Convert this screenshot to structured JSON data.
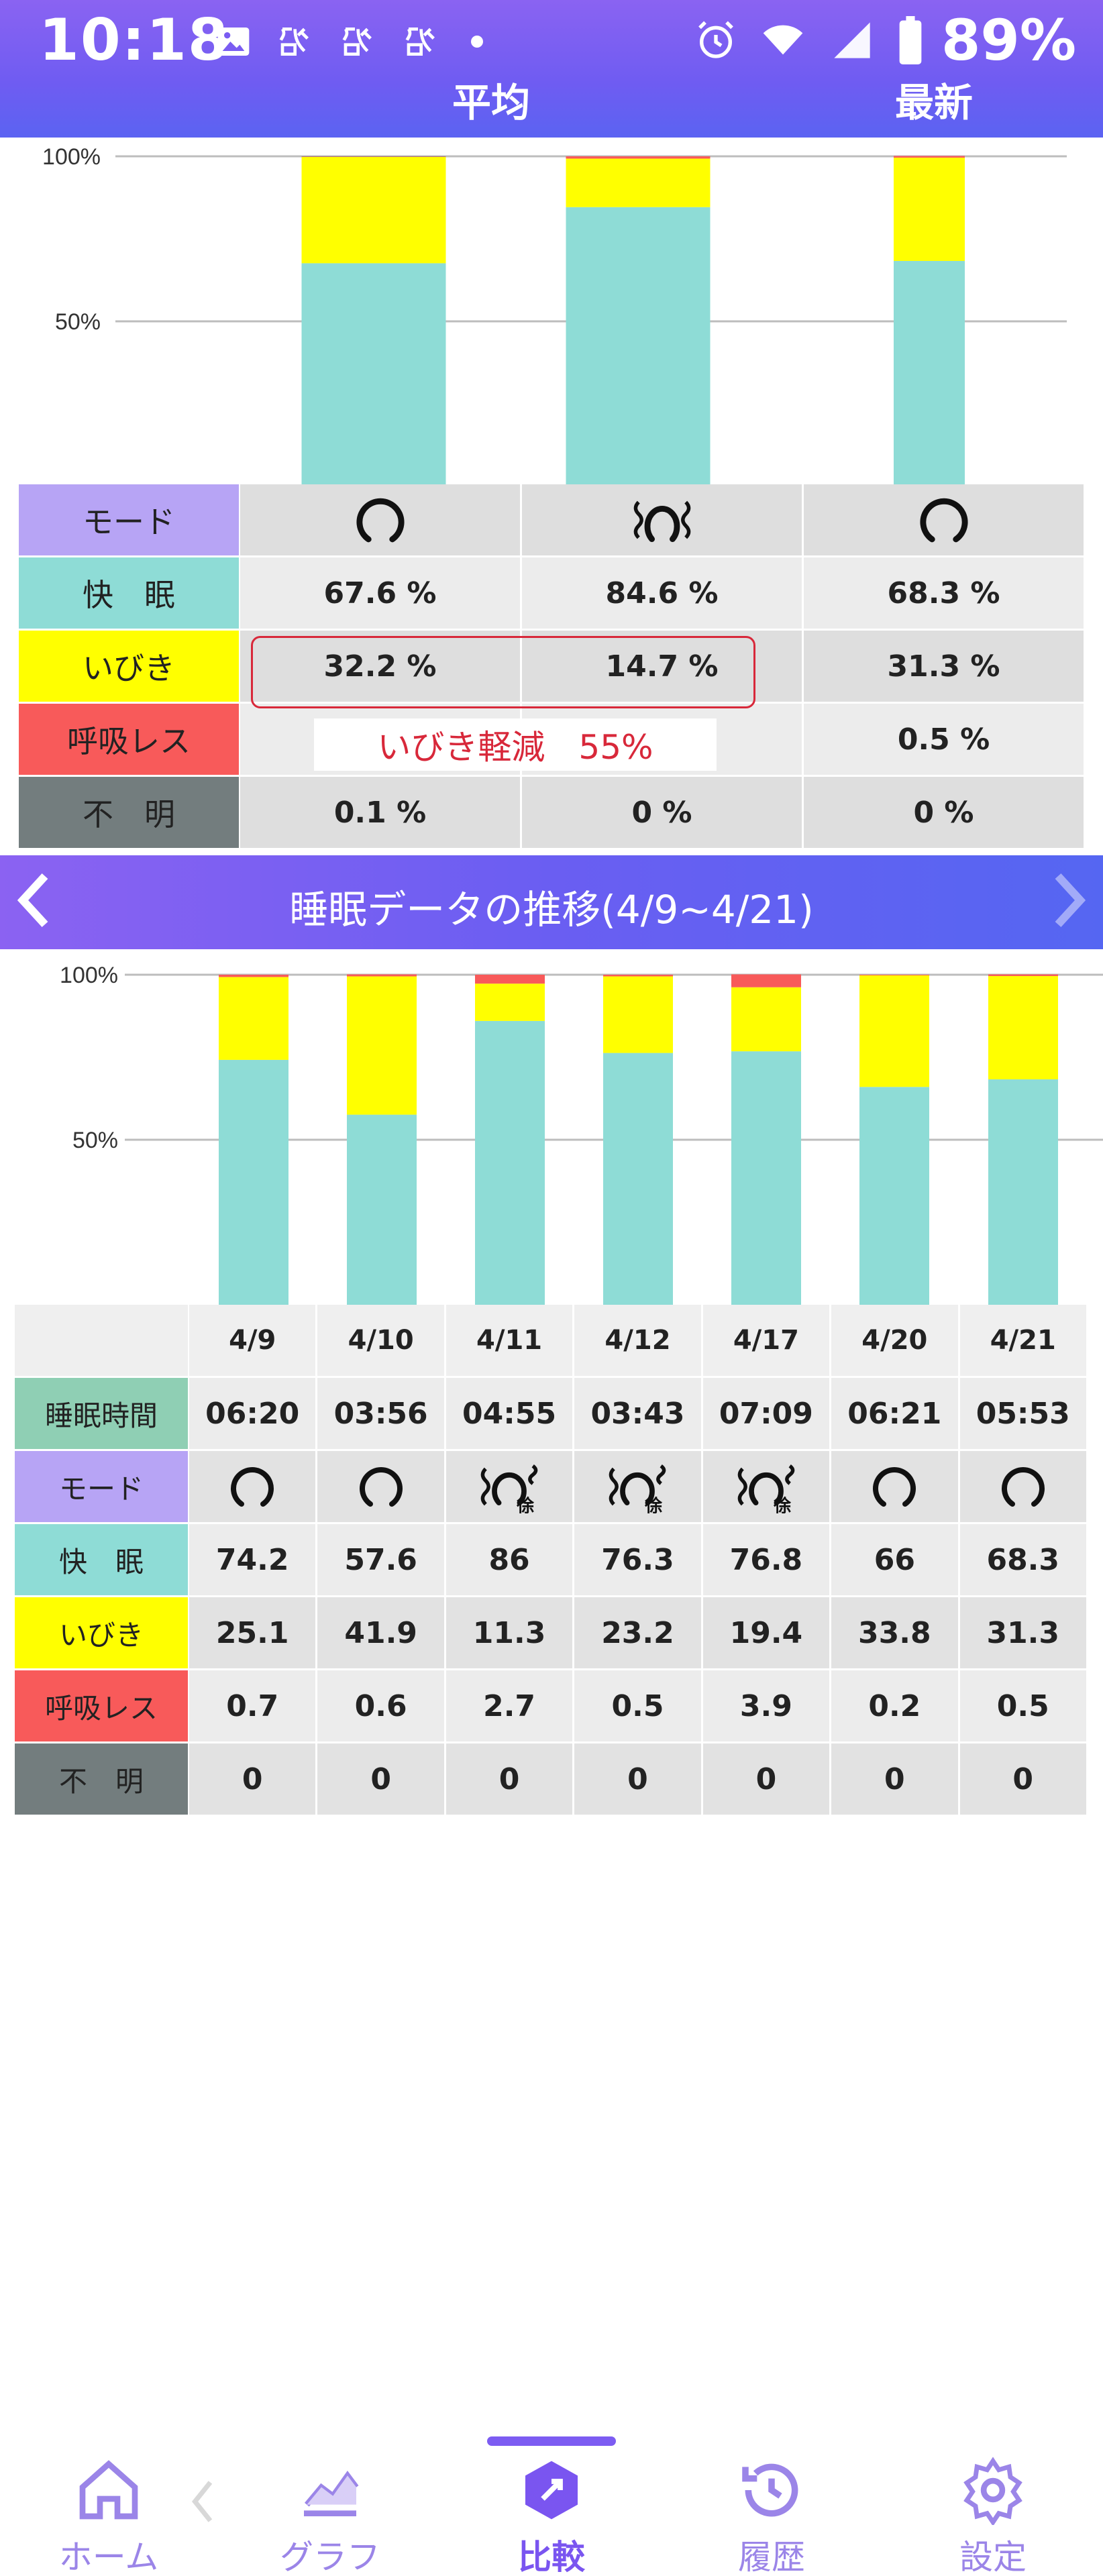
{
  "status_bar": {
    "time": "10:18",
    "battery": "89%",
    "icons": [
      "gallery-icon",
      "sleep-app-icon",
      "sleep-app-icon",
      "sleep-app-icon",
      "dot-icon",
      "alarm-icon",
      "wifi-icon",
      "signal-icon",
      "battery-icon"
    ]
  },
  "header": {
    "avg_label": "平均",
    "latest_label": "最新"
  },
  "compare_chart": {
    "ticks": [
      "100%",
      "50%"
    ]
  },
  "compare_table": {
    "labels": {
      "mode": "モード",
      "kaimin": "快　眠",
      "ibiki": "いびき",
      "kokyu": "呼吸レス",
      "fumei": "不　明"
    },
    "rows": {
      "kaimin": [
        "67.6 %",
        "84.6 %",
        "68.3 %"
      ],
      "ibiki": [
        "32.2 %",
        "14.7 %",
        "31.3 %"
      ],
      "kokyu": [
        "",
        "",
        "0.5 %"
      ],
      "fumei": [
        "0.1 %",
        "0 %",
        "0 %"
      ]
    },
    "note": "いびき軽減　55%"
  },
  "trend": {
    "title": "睡眠データの推移(4/9~4/21)",
    "prev": "〈",
    "next": "〉",
    "ticks": [
      "100%",
      "50%"
    ],
    "dates": [
      "4/9",
      "4/10",
      "4/11",
      "4/12",
      "4/17",
      "4/20",
      "4/21"
    ],
    "labels": {
      "sleep_time": "睡眠時間",
      "mode": "モード",
      "kaimin": "快　眠",
      "ibiki": "いびき",
      "kokyu": "呼吸レス",
      "fumei": "不　明"
    },
    "sleep_time": [
      "06:20",
      "03:56",
      "04:55",
      "03:43",
      "07:09",
      "06:21",
      "05:53"
    ],
    "mode_badge": "徐",
    "kaimin": [
      "74.2",
      "57.6",
      "86",
      "76.3",
      "76.8",
      "66",
      "68.3"
    ],
    "ibiki": [
      "25.1",
      "41.9",
      "11.3",
      "23.2",
      "19.4",
      "33.8",
      "31.3"
    ],
    "kokyu": [
      "0.7",
      "0.6",
      "2.7",
      "0.5",
      "3.9",
      "0.2",
      "0.5"
    ],
    "fumei": [
      "0",
      "0",
      "0",
      "0",
      "0",
      "0",
      "0"
    ]
  },
  "nav": {
    "home": "ホーム",
    "graph": "グラフ",
    "compare": "比較",
    "history": "履歴",
    "settings": "設定"
  },
  "colors": {
    "kaimin": "#8edcd6",
    "ibiki": "#ffff00",
    "kokyu": "#f85a5a",
    "fumei": "#737d7e",
    "mode": "#b7a4f5",
    "sleep_time": "#8fcfb4",
    "accent": "#7a55f0"
  },
  "chart_data": [
    {
      "type": "bar",
      "categories": [
        "",
        "",
        ""
      ],
      "series": [
        {
          "name": "快眠",
          "values": [
            67.6,
            84.6,
            68.3
          ]
        },
        {
          "name": "いびき",
          "values": [
            32.2,
            14.7,
            31.3
          ]
        },
        {
          "name": "呼吸レス",
          "values": [
            0.1,
            0.7,
            0.5
          ]
        },
        {
          "name": "不明",
          "values": [
            0.1,
            0,
            0
          ]
        }
      ],
      "stacked": true,
      "ylim": [
        0,
        100
      ],
      "ytick_labels": [
        "50%",
        "100%"
      ],
      "grid": true
    },
    {
      "type": "bar",
      "categories": [
        "4/9",
        "4/10",
        "4/11",
        "4/12",
        "4/17",
        "4/20",
        "4/21"
      ],
      "series": [
        {
          "name": "快眠",
          "values": [
            74.2,
            57.6,
            86,
            76.3,
            76.8,
            66,
            68.3
          ]
        },
        {
          "name": "いびき",
          "values": [
            25.1,
            41.9,
            11.3,
            23.2,
            19.4,
            33.8,
            31.3
          ]
        },
        {
          "name": "呼吸レス",
          "values": [
            0.7,
            0.6,
            2.7,
            0.5,
            3.9,
            0.2,
            0.5
          ]
        },
        {
          "name": "不明",
          "values": [
            0,
            0,
            0,
            0,
            0,
            0,
            0
          ]
        }
      ],
      "stacked": true,
      "ylim": [
        0,
        100
      ],
      "ytick_labels": [
        "50%",
        "100%"
      ],
      "grid": true
    }
  ]
}
